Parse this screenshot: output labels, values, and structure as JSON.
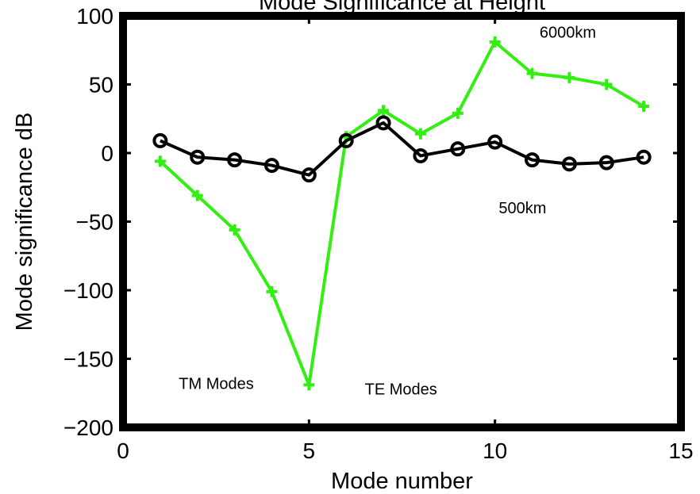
{
  "chart_data": {
    "type": "line",
    "title": "Mode Significance at Height",
    "xlabel": "Mode number",
    "ylabel": "Mode significance dB",
    "xlim": [
      0,
      15
    ],
    "ylim": [
      -200,
      100
    ],
    "xticks": [
      0,
      5,
      10,
      15
    ],
    "yticks": [
      100,
      50,
      0,
      -50,
      -100,
      -150,
      -200
    ],
    "xtick_labels": [
      "0",
      "5",
      "10",
      "15"
    ],
    "ytick_labels": [
      "100",
      "50",
      "0",
      "−50",
      "−100",
      "−150",
      "−200"
    ],
    "grid": false,
    "series": [
      {
        "name": "6000km",
        "color": "#33ee11",
        "marker": "plus",
        "x": [
          1,
          2,
          3,
          4,
          5,
          6,
          7,
          8,
          9,
          10,
          11,
          12,
          13,
          14
        ],
        "values": [
          -6,
          -31,
          -56,
          -101,
          -169,
          12,
          31,
          14,
          29,
          81,
          58,
          55,
          50,
          34
        ]
      },
      {
        "name": "500km",
        "color": "#000000",
        "marker": "circle",
        "x": [
          1,
          2,
          3,
          4,
          5,
          6,
          7,
          8,
          9,
          10,
          11,
          12,
          13,
          14
        ],
        "values": [
          9,
          -3,
          -5,
          -9,
          -16,
          9,
          22,
          -2,
          3,
          8,
          -5,
          -8,
          -7,
          -3
        ]
      }
    ],
    "annotations": [
      {
        "text": "6000km",
        "x": 11.2,
        "y": 84
      },
      {
        "text": "500km",
        "x": 10.1,
        "y": -44
      },
      {
        "text": "TM Modes",
        "x": 1.5,
        "y": -172
      },
      {
        "text": "TE Modes",
        "x": 6.5,
        "y": -176
      }
    ]
  }
}
